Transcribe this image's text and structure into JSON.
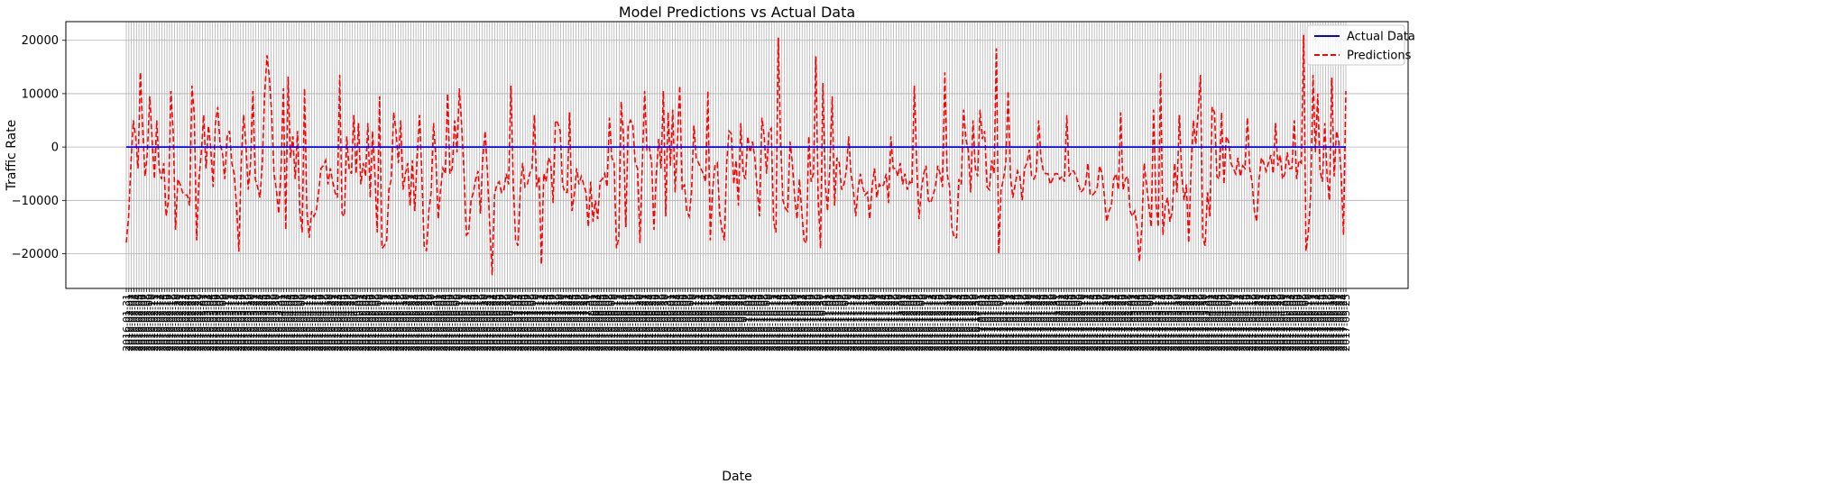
{
  "chart_data": {
    "type": "line",
    "title": "Model Predictions vs Actual Data",
    "xlabel": "Date",
    "ylabel": "Traffic Rate",
    "ylim": [
      -26500,
      23500
    ],
    "yticks": [
      -20000,
      -10000,
      0,
      10000,
      20000
    ],
    "ytick_labels": [
      "−20000",
      "−10000",
      "0",
      "10000",
      "20000"
    ],
    "grid": true,
    "legend_position": "top-right",
    "x_start_date": "2016-01-31",
    "x_period_days": 1,
    "x_count": 480,
    "x_tick_labels": [
      "2016-01-31",
      "2016-02-01",
      "2016-02-02",
      "2016-02-03",
      "2016-02-04",
      "2016-02-05",
      "2016-02-06",
      "2016-02-07",
      "2016-02-08",
      "2016-02-09",
      "2016-02-10",
      "2016-02-11",
      "2016-02-12",
      "2016-02-13",
      "2016-02-14",
      "2016-02-15",
      "2016-02-16",
      "2016-02-17",
      "2016-02-18",
      "2016-02-19",
      "2016-02-20",
      "2016-02-21",
      "2016-02-22",
      "2016-02-23",
      "2016-02-24",
      "2016-02-25",
      "2016-02-26",
      "2016-02-27",
      "2016-02-28",
      "2016-02-29",
      "2016-03-01",
      "2016-03-02",
      "2016-03-03",
      "2016-03-04",
      "2016-03-05",
      "2016-03-06",
      "2016-03-07",
      "2016-03-08",
      "2016-03-09",
      "2016-03-10",
      "2016-03-11",
      "2016-03-12",
      "2016-03-13",
      "2016-03-14",
      "2016-03-15",
      "2016-03-16",
      "2016-03-17",
      "2016-03-18",
      "2016-03-19",
      "2016-03-20",
      "2016-03-21",
      "2016-03-22",
      "2016-03-23",
      "2016-03-24",
      "2016-03-25",
      "2016-03-26",
      "2016-03-27",
      "2016-03-28",
      "2016-03-29",
      "2016-03-30",
      "2016-03-31",
      "2016-04-01",
      "2016-04-02",
      "2016-04-03",
      "2016-04-04",
      "2016-04-05",
      "2016-04-06",
      "2016-04-07",
      "2016-04-08",
      "2016-04-09",
      "2016-04-10",
      "2016-04-11",
      "2016-04-12",
      "2016-04-13",
      "2016-04-14",
      "2016-04-15",
      "2016-04-16",
      "2016-04-17",
      "2016-04-18",
      "2016-04-19",
      "2016-04-20",
      "2016-04-21",
      "2016-04-22",
      "2016-04-23",
      "2016-04-24",
      "2016-04-25",
      "2016-04-26",
      "2016-04-27",
      "2016-04-28",
      "2016-04-29",
      "2016-04-30",
      "2016-05-01",
      "2016-05-02",
      "2016-05-03",
      "2016-05-04",
      "2016-05-05",
      "2016-05-06",
      "2016-05-07",
      "2016-05-08",
      "2016-05-09",
      "2016-05-10",
      "2016-05-11",
      "2016-05-12",
      "2016-05-13",
      "2016-05-14",
      "2016-05-15",
      "2016-05-16",
      "2016-05-17",
      "2016-05-18",
      "2016-05-19",
      "2016-05-20",
      "2016-05-21",
      "2016-05-22",
      "2016-05-23",
      "2016-05-24",
      "2016-05-25",
      "2016-05-26",
      "2016-05-27",
      "2016-05-28",
      "2016-05-29",
      "2016-05-30",
      "2016-05-31",
      "2016-06-01",
      "2016-06-02",
      "2016-06-03",
      "2016-06-04",
      "2016-06-05",
      "2016-06-06",
      "2016-06-07",
      "2016-06-08",
      "2016-06-09",
      "2016-06-10",
      "2016-06-11",
      "2016-06-12",
      "2016-06-13",
      "2016-06-14",
      "2016-06-15",
      "2016-06-16",
      "2016-06-17",
      "2016-06-18",
      "2016-06-19",
      "2016-06-20",
      "2016-06-21",
      "2016-06-22",
      "2016-06-23",
      "2016-06-24",
      "2016-06-25",
      "2016-06-26",
      "2016-06-27",
      "2016-06-28",
      "2016-06-29",
      "2016-06-30",
      "2016-07-01",
      "2016-07-02",
      "2016-07-03",
      "2016-07-04",
      "2016-07-05",
      "2016-07-06",
      "2016-07-07",
      "2016-07-08",
      "2016-07-09",
      "2016-07-10",
      "2016-07-11",
      "2016-07-12",
      "2016-07-13",
      "2016-07-14",
      "2016-07-15",
      "2016-07-16",
      "2016-07-17",
      "2016-07-18",
      "2016-07-19",
      "2016-07-20",
      "2016-07-21",
      "2016-07-22",
      "2016-07-23",
      "2016-07-24",
      "2016-07-25",
      "2016-07-26",
      "2016-07-27",
      "2016-07-28",
      "2016-07-29",
      "2016-07-30",
      "2016-07-31",
      "2016-08-01",
      "2016-08-02",
      "2016-08-03",
      "2016-08-04",
      "2016-08-05",
      "2016-08-06",
      "2016-08-07",
      "2016-08-08",
      "2016-08-09",
      "2016-08-10",
      "2016-08-11",
      "2016-08-12",
      "2016-08-13",
      "2016-08-14",
      "2016-08-15",
      "2016-08-16",
      "2016-08-17",
      "2016-08-18",
      "2016-08-19",
      "2016-08-20",
      "2016-08-21",
      "2016-08-22",
      "2016-08-23",
      "2016-08-24",
      "2016-08-25",
      "2016-08-26",
      "2016-08-27",
      "2016-08-28",
      "2016-08-29",
      "2016-08-30",
      "2016-08-31",
      "2016-09-01",
      "2016-09-02",
      "2016-09-03",
      "2016-09-04",
      "2016-09-05",
      "2016-09-06",
      "2016-09-07",
      "2016-09-08",
      "2016-09-09",
      "2016-09-10",
      "2016-09-11",
      "2016-09-12",
      "2016-09-13",
      "2016-09-14",
      "2016-09-15",
      "2016-09-16",
      "2016-09-17",
      "2016-09-18",
      "2016-09-19",
      "2016-09-20",
      "2016-09-21",
      "2016-09-22",
      "2016-09-23",
      "2016-09-24",
      "2016-09-25",
      "2016-09-26",
      "2016-09-27",
      "2016-09-28",
      "2016-09-29",
      "2016-09-30",
      "2016-10-01",
      "2016-10-02",
      "2016-10-03",
      "2016-10-04",
      "2016-10-05",
      "2016-10-06",
      "2016-10-07",
      "2016-10-08",
      "2016-10-09",
      "2016-10-10",
      "2016-10-11",
      "2016-10-12",
      "2016-10-13",
      "2016-10-14",
      "2016-10-15",
      "2016-10-16",
      "2016-10-17",
      "2016-10-18",
      "2016-10-19",
      "2016-10-20",
      "2016-10-21",
      "2016-10-22",
      "2016-10-23",
      "2016-10-24",
      "2016-10-25",
      "2016-10-26",
      "2016-10-27",
      "2016-10-28",
      "2016-10-29",
      "2016-10-30",
      "2016-10-31",
      "2016-11-01",
      "2016-11-02",
      "2016-11-03",
      "2016-11-04",
      "2016-11-05",
      "2016-11-06",
      "2016-11-07",
      "2016-11-08",
      "2016-11-09",
      "2016-11-10",
      "2016-11-11",
      "2016-11-12",
      "2016-11-13",
      "2016-11-14",
      "2016-11-15",
      "2016-11-16",
      "2016-11-17",
      "2016-11-18",
      "2016-11-19",
      "2016-11-20",
      "2016-11-21",
      "2016-11-22",
      "2016-11-23",
      "2016-11-24",
      "2016-11-25",
      "2016-11-26",
      "2016-11-27",
      "2016-11-28",
      "2016-11-29",
      "2016-11-30",
      "2016-12-01",
      "2016-12-02",
      "2016-12-03",
      "2016-12-04",
      "2016-12-05",
      "2016-12-06",
      "2016-12-07",
      "2016-12-08",
      "2016-12-09",
      "2016-12-10",
      "2016-12-11",
      "2016-12-12",
      "2016-12-13",
      "2016-12-14",
      "2016-12-15",
      "2016-12-16",
      "2016-12-17",
      "2016-12-18",
      "2016-12-19",
      "2016-12-20",
      "2016-12-21",
      "2016-12-22",
      "2016-12-23",
      "2016-12-24",
      "2016-12-25",
      "2016-12-26",
      "2016-12-27",
      "2016-12-28",
      "2016-12-29",
      "2016-12-30",
      "2016-12-31",
      "2017-01-01",
      "2017-01-02",
      "2017-01-03",
      "2017-01-04",
      "2017-01-05",
      "2017-01-06",
      "2017-01-07",
      "2017-01-08",
      "2017-01-09",
      "2017-01-10",
      "2017-01-11",
      "2017-01-12",
      "2017-01-13",
      "2017-01-14",
      "2017-01-15",
      "2017-01-16",
      "2017-01-17",
      "2017-01-18",
      "2017-01-19",
      "2017-01-20",
      "2017-01-21",
      "2017-01-22",
      "2017-01-23",
      "2017-01-24",
      "2017-01-25",
      "2017-01-26",
      "2017-01-27",
      "2017-01-28",
      "2017-01-29",
      "2017-01-30",
      "2017-01-31",
      "2017-02-01",
      "2017-02-02",
      "2017-02-03",
      "2017-02-04",
      "2017-02-05",
      "2017-02-06",
      "2017-02-07",
      "2017-02-08",
      "2017-02-09",
      "2017-02-10",
      "2017-02-11",
      "2017-02-12",
      "2017-02-13",
      "2017-02-14",
      "2017-02-15",
      "2017-02-16",
      "2017-02-17",
      "2017-02-18",
      "2017-02-19",
      "2017-02-20",
      "2017-02-21",
      "2017-02-22",
      "2017-02-23",
      "2017-02-24",
      "2017-02-25",
      "2017-02-26",
      "2017-02-27",
      "2017-02-28",
      "2017-03-01",
      "2017-03-02",
      "2017-03-03",
      "2017-03-04",
      "2017-03-05",
      "2017-03-06",
      "2017-03-07",
      "2017-03-08",
      "2017-03-09",
      "2017-03-10",
      "2017-03-11",
      "2017-03-12",
      "2017-03-13",
      "2017-03-14",
      "2017-03-15",
      "2017-03-16",
      "2017-03-17",
      "2017-03-18",
      "2017-03-19",
      "2017-03-20",
      "2017-03-21",
      "2017-03-22",
      "2017-03-23",
      "2017-03-24",
      "2017-03-25",
      "2017-03-26",
      "2017-03-27",
      "2017-03-28",
      "2017-03-29",
      "2017-03-30",
      "2017-03-31",
      "2017-04-01",
      "2017-04-02",
      "2017-04-03",
      "2017-04-04",
      "2017-04-05",
      "2017-04-06",
      "2017-04-07",
      "2017-04-08",
      "2017-04-09",
      "2017-04-10",
      "2017-04-11",
      "2017-04-12",
      "2017-04-13",
      "2017-04-14",
      "2017-04-15",
      "2017-04-16",
      "2017-04-17",
      "2017-04-18",
      "2017-04-19",
      "2017-04-20",
      "2017-04-21",
      "2017-04-22",
      "2017-04-23",
      "2017-04-24",
      "2017-04-25",
      "2017-04-26",
      "2017-04-27",
      "2017-04-28",
      "2017-04-29",
      "2017-04-30",
      "2017-05-01",
      "2017-05-02",
      "2017-05-03",
      "2017-05-04",
      "2017-05-05",
      "2017-05-06",
      "2017-05-07",
      "2017-05-08",
      "2017-05-09",
      "2017-05-10",
      "2017-05-11",
      "2017-05-12",
      "2017-05-13",
      "2017-05-14",
      "2017-05-15",
      "2017-05-16",
      "2017-05-17",
      "2017-05-18",
      "2017-05-19",
      "2017-05-20",
      "2017-05-21",
      "2017-05-22",
      "2017-05-23",
      "2017-05-24",
      "2017-05-25"
    ],
    "series": [
      {
        "name": "Actual Data",
        "color": "#0000ff",
        "style": "solid",
        "values": "constant",
        "constant_value": 0
      },
      {
        "name": "Predictions",
        "color": "#ff0000",
        "style": "dashed",
        "values": [
          -17900,
          -13000,
          -3000,
          5000,
          2000,
          -4000,
          14000,
          3500,
          -5500,
          -1000,
          9500,
          1500,
          -6000,
          5000,
          -4000,
          -6000,
          -3000,
          -13000,
          -10000,
          10500,
          3000,
          -15500,
          -6000,
          -7000,
          -8500,
          -9000,
          -9000,
          -11000,
          11500,
          6000,
          -17500,
          -6000,
          -1000,
          6000,
          -4000,
          4000,
          0,
          -7500,
          4500,
          7500,
          500,
          -1000,
          -6000,
          2000,
          3000,
          -3000,
          -5000,
          -11000,
          -19600,
          -3000,
          6000,
          500,
          -8000,
          -3000,
          10500,
          -6000,
          -7500,
          -9500,
          -3000,
          10000,
          17200,
          13000,
          6000,
          -5000,
          -8000,
          -12500,
          -4000,
          11000,
          -15500,
          13200,
          -2000,
          2000,
          -6000,
          3000,
          -12000,
          -16000,
          11000,
          -12000,
          -17000,
          -12000,
          -13000,
          -12000,
          -8500,
          -4000,
          -3500,
          -2500,
          -7000,
          -4000,
          -6500,
          -8500,
          -9500,
          13500,
          -12500,
          -13000,
          2000,
          -4000,
          -5000,
          6000,
          -5000,
          4500,
          -7000,
          -3000,
          -5500,
          4500,
          -9500,
          3000,
          -5000,
          -16000,
          9500,
          -19000,
          -18500,
          -17500,
          -8000,
          -6000,
          6500,
          3000,
          -3000,
          5000,
          -8000,
          -5000,
          -3000,
          -11000,
          -2500,
          -12000,
          -2000,
          6000,
          -5000,
          -18500,
          -19500,
          -12000,
          -8500,
          4500,
          -2000,
          -13500,
          -8000,
          -4000,
          -5000,
          10000,
          -5000,
          -4000,
          5000,
          -1000,
          11000,
          4000,
          -5000,
          -16500,
          -16000,
          -10000,
          -8500,
          -6000,
          -4500,
          -12500,
          -2000,
          3000,
          -5000,
          -15000,
          -24000,
          -9000,
          -7000,
          -6500,
          -8500,
          -8000,
          -5000,
          -7000,
          11500,
          -7000,
          -17500,
          -18500,
          -8000,
          -3000,
          -7500,
          -7000,
          -5000,
          -4000,
          6000,
          -7500,
          -5500,
          -22000,
          -5000,
          -6500,
          -2000,
          -3000,
          -10500,
          5000,
          4500,
          3000,
          -7000,
          -8500,
          -8500,
          6500,
          -12000,
          -9000,
          -4000,
          -7000,
          -5500,
          -7000,
          -8500,
          -15000,
          -6500,
          -14000,
          -10000,
          -13500,
          -6500,
          -6000,
          -5000,
          -7500,
          5500,
          -2000,
          -3000,
          -19000,
          -17000,
          8500,
          2000,
          -15000,
          4000,
          5000,
          4000,
          -3000,
          -4000,
          -18000,
          -3500,
          10500,
          -500,
          0,
          -3000,
          -15500,
          -5000,
          1500,
          -4000,
          10500,
          -13000,
          6500,
          -3500,
          7000,
          -8500,
          1000,
          11500,
          -8000,
          -7000,
          -12000,
          -13000,
          -8500,
          4000,
          -2000,
          -3000,
          -4000,
          -5000,
          -6500,
          10500,
          -17500,
          -8000,
          -3500,
          -3000,
          -12500,
          -15500,
          -17500,
          -3000,
          3000,
          2500,
          -7000,
          -2500,
          -11000,
          4500,
          -5000,
          -6000,
          2000,
          -1000,
          1000,
          -2000,
          -8000,
          -13000,
          5500,
          2000,
          -5000,
          3000,
          3500,
          -14000,
          -16000,
          20500,
          500,
          -10000,
          -11500,
          -12000,
          1000,
          -3000,
          -9500,
          -13500,
          -6000,
          -12000,
          -17500,
          -18000,
          2000,
          -6500,
          -5000,
          17000,
          -9500,
          -19000,
          12000,
          -6500,
          -12000,
          -3500,
          9500,
          -11000,
          -2000,
          -3000,
          -8000,
          -7000,
          -4500,
          2000,
          -5000,
          -8000,
          -13000,
          -8000,
          -5000,
          -7500,
          -9000,
          -8500,
          -13500,
          -7500,
          -4000,
          -9500,
          -7000,
          -7500,
          -7000,
          -5000,
          -10500,
          2000,
          -4000,
          -4000,
          -5500,
          -3000,
          -7000,
          -5000,
          -8000,
          -6500,
          -7000,
          11500,
          -3000,
          -13500,
          -8000,
          -5000,
          -3500,
          -10000,
          -10500,
          -9000,
          -7500,
          -3500,
          -5000,
          -7500,
          14000,
          -5000,
          -7500,
          -15000,
          -17000,
          -17000,
          -6000,
          -7000,
          7000,
          1500,
          -500,
          -8500,
          5000,
          -4000,
          -5500,
          7000,
          1500,
          3000,
          -7500,
          -8000,
          -2500,
          -5000,
          18500,
          -20000,
          -8000,
          -6000,
          -3000,
          10500,
          -5500,
          -9500,
          -7000,
          -4500,
          -5500,
          -10000,
          -4000,
          -3000,
          -500,
          -5500,
          -6000,
          -5000,
          5000,
          -2000,
          -4500,
          -5000,
          -5000,
          -7000,
          -6000,
          -5000,
          -5000,
          -6000,
          -5500,
          -6500,
          6000,
          -5500,
          -4500,
          -4500,
          -5500,
          -7000,
          -8500,
          -8000,
          -7000,
          -3000,
          -9000,
          -9000,
          -8500,
          -7500,
          -3500,
          -5000,
          -9000,
          -14000,
          -12000,
          -11000,
          -6000,
          -5000,
          -8000,
          6500,
          -8000,
          -6000,
          -5500,
          -12000,
          -13000,
          -12000,
          -15000,
          -21500,
          -15000,
          -3000,
          -7000,
          -11000,
          -15000,
          7000,
          -10000,
          -15000,
          14000,
          -16500,
          -11000,
          -9500,
          -14000,
          -12000,
          -3000,
          -8500,
          6000,
          -5000,
          -10000,
          -7000,
          -18000,
          -4000,
          5000,
          500,
          6500,
          13500,
          -17000,
          -18500,
          -8500,
          -13000,
          7500,
          6500,
          -5500,
          -6000,
          6500,
          -7000,
          2000,
          1000,
          -3000,
          -4000,
          -5000,
          -2000,
          -5500,
          -3500,
          -4000,
          5500,
          -4000,
          -6500,
          -12000,
          -14000,
          -6000,
          -2000,
          -3000,
          -4500,
          -3000,
          -1500,
          -5000,
          4500,
          -3500,
          -1500,
          -6000,
          -5000,
          -1000,
          -4000,
          -4000,
          5000,
          -6000,
          -2500,
          -3000,
          21000,
          -19500,
          -16000,
          -9000,
          13500,
          -1000,
          10000,
          -4500,
          -6500,
          4500,
          -5500,
          -10000,
          13000,
          -5500,
          3000,
          1000,
          -5000,
          -16500,
          10500
        ]
      }
    ]
  }
}
